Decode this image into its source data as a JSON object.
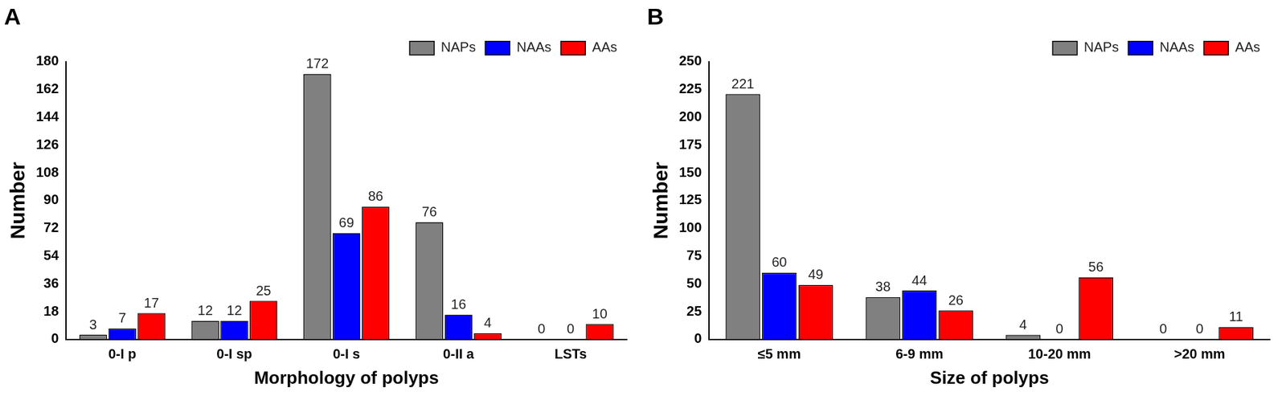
{
  "chart_data": [
    {
      "type": "bar",
      "title": "A",
      "x_label": "Morphology of polyps",
      "y_label": "Number",
      "categories": [
        "0-I p",
        "0-I sp",
        "0-I s",
        "0-II a",
        "LSTs"
      ],
      "series": [
        {
          "name": "NAPs",
          "color": "#808080",
          "values": [
            3,
            12,
            172,
            76,
            0
          ]
        },
        {
          "name": "NAAs",
          "color": "#0000ff",
          "values": [
            7,
            12,
            69,
            16,
            0
          ]
        },
        {
          "name": "AAs",
          "color": "#ff0000",
          "values": [
            17,
            25,
            86,
            4,
            10
          ]
        }
      ],
      "ylim": [
        0,
        180
      ],
      "yticks": [
        0,
        18,
        36,
        54,
        72,
        90,
        108,
        126,
        144,
        162,
        180
      ],
      "grid": false,
      "legend": "top-right",
      "data_labels": true
    },
    {
      "type": "bar",
      "title": "B",
      "x_label": "Size of polyps",
      "y_label": "Number",
      "categories": [
        "≤5 mm",
        "6-9 mm",
        "10-20 mm",
        ">20 mm"
      ],
      "series": [
        {
          "name": "NAPs",
          "color": "#808080",
          "values": [
            221,
            38,
            4,
            0
          ]
        },
        {
          "name": "NAAs",
          "color": "#0000ff",
          "values": [
            60,
            44,
            0,
            0
          ]
        },
        {
          "name": "AAs",
          "color": "#ff0000",
          "values": [
            49,
            26,
            56,
            11
          ]
        }
      ],
      "ylim": [
        0,
        250
      ],
      "yticks": [
        0,
        25,
        50,
        75,
        100,
        125,
        150,
        175,
        200,
        225,
        250
      ],
      "grid": false,
      "legend": "top-right",
      "data_labels": true
    }
  ]
}
